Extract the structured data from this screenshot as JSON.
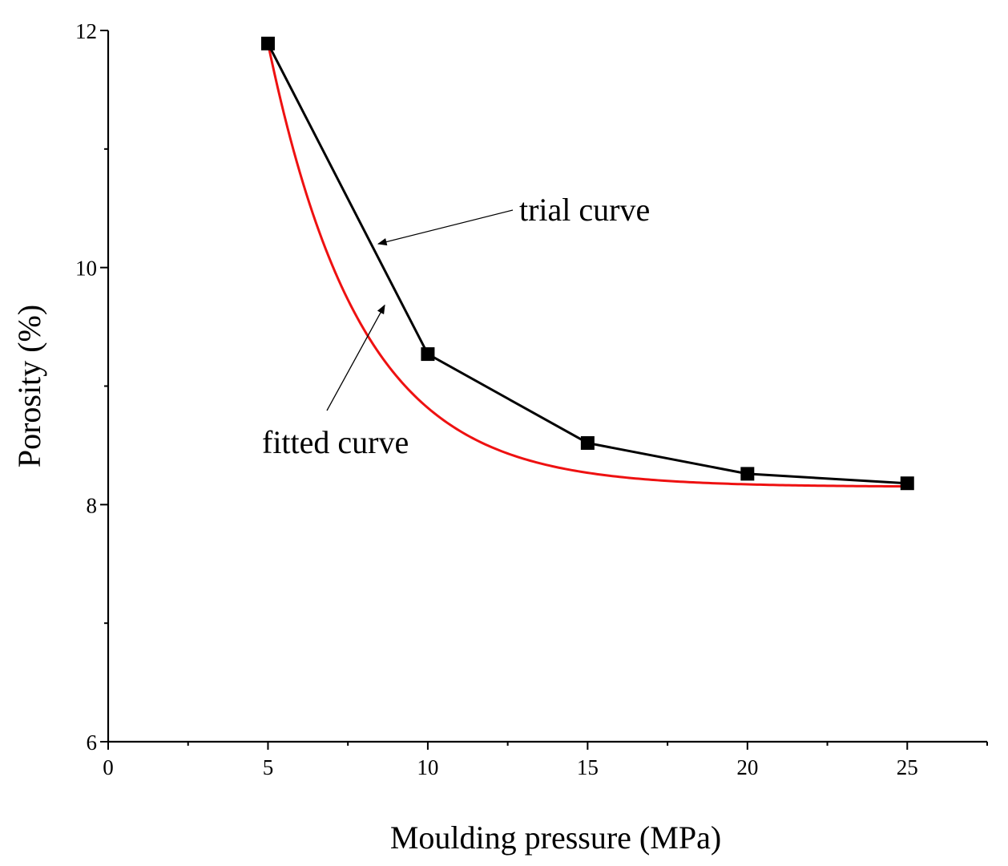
{
  "chart_data": {
    "type": "line",
    "title": "",
    "xlabel": "Moulding pressure (MPa)",
    "ylabel": "Porosity (%)",
    "xlim": [
      0,
      27.5
    ],
    "ylim": [
      6,
      12
    ],
    "xticks": [
      0,
      5,
      10,
      15,
      20,
      25
    ],
    "xtick_labels": [
      "0",
      "5",
      "10",
      "15",
      "20",
      "25"
    ],
    "yticks": [
      6,
      8,
      10,
      12
    ],
    "ytick_labels": [
      "6",
      "8",
      "10",
      "12"
    ],
    "series": [
      {
        "name": "trial curve",
        "color": "#000000",
        "marker": "square",
        "x": [
          5,
          10,
          15,
          20,
          25
        ],
        "y": [
          11.89,
          9.27,
          8.52,
          8.26,
          8.18
        ]
      },
      {
        "name": "fitted curve",
        "color": "#ee1111",
        "model": "exponential-decay",
        "y0": 8.15,
        "A": 3.74,
        "x0": 5,
        "k": 0.345,
        "x_range": [
          5,
          25
        ]
      }
    ],
    "annotations": [
      {
        "label": "trial curve",
        "target_series": "trial curve",
        "point_at": [
          8.3,
          10.22
        ]
      },
      {
        "label": "fitted curve",
        "target_series": "fitted curve",
        "point_at": [
          8.6,
          9.75
        ]
      }
    ]
  }
}
